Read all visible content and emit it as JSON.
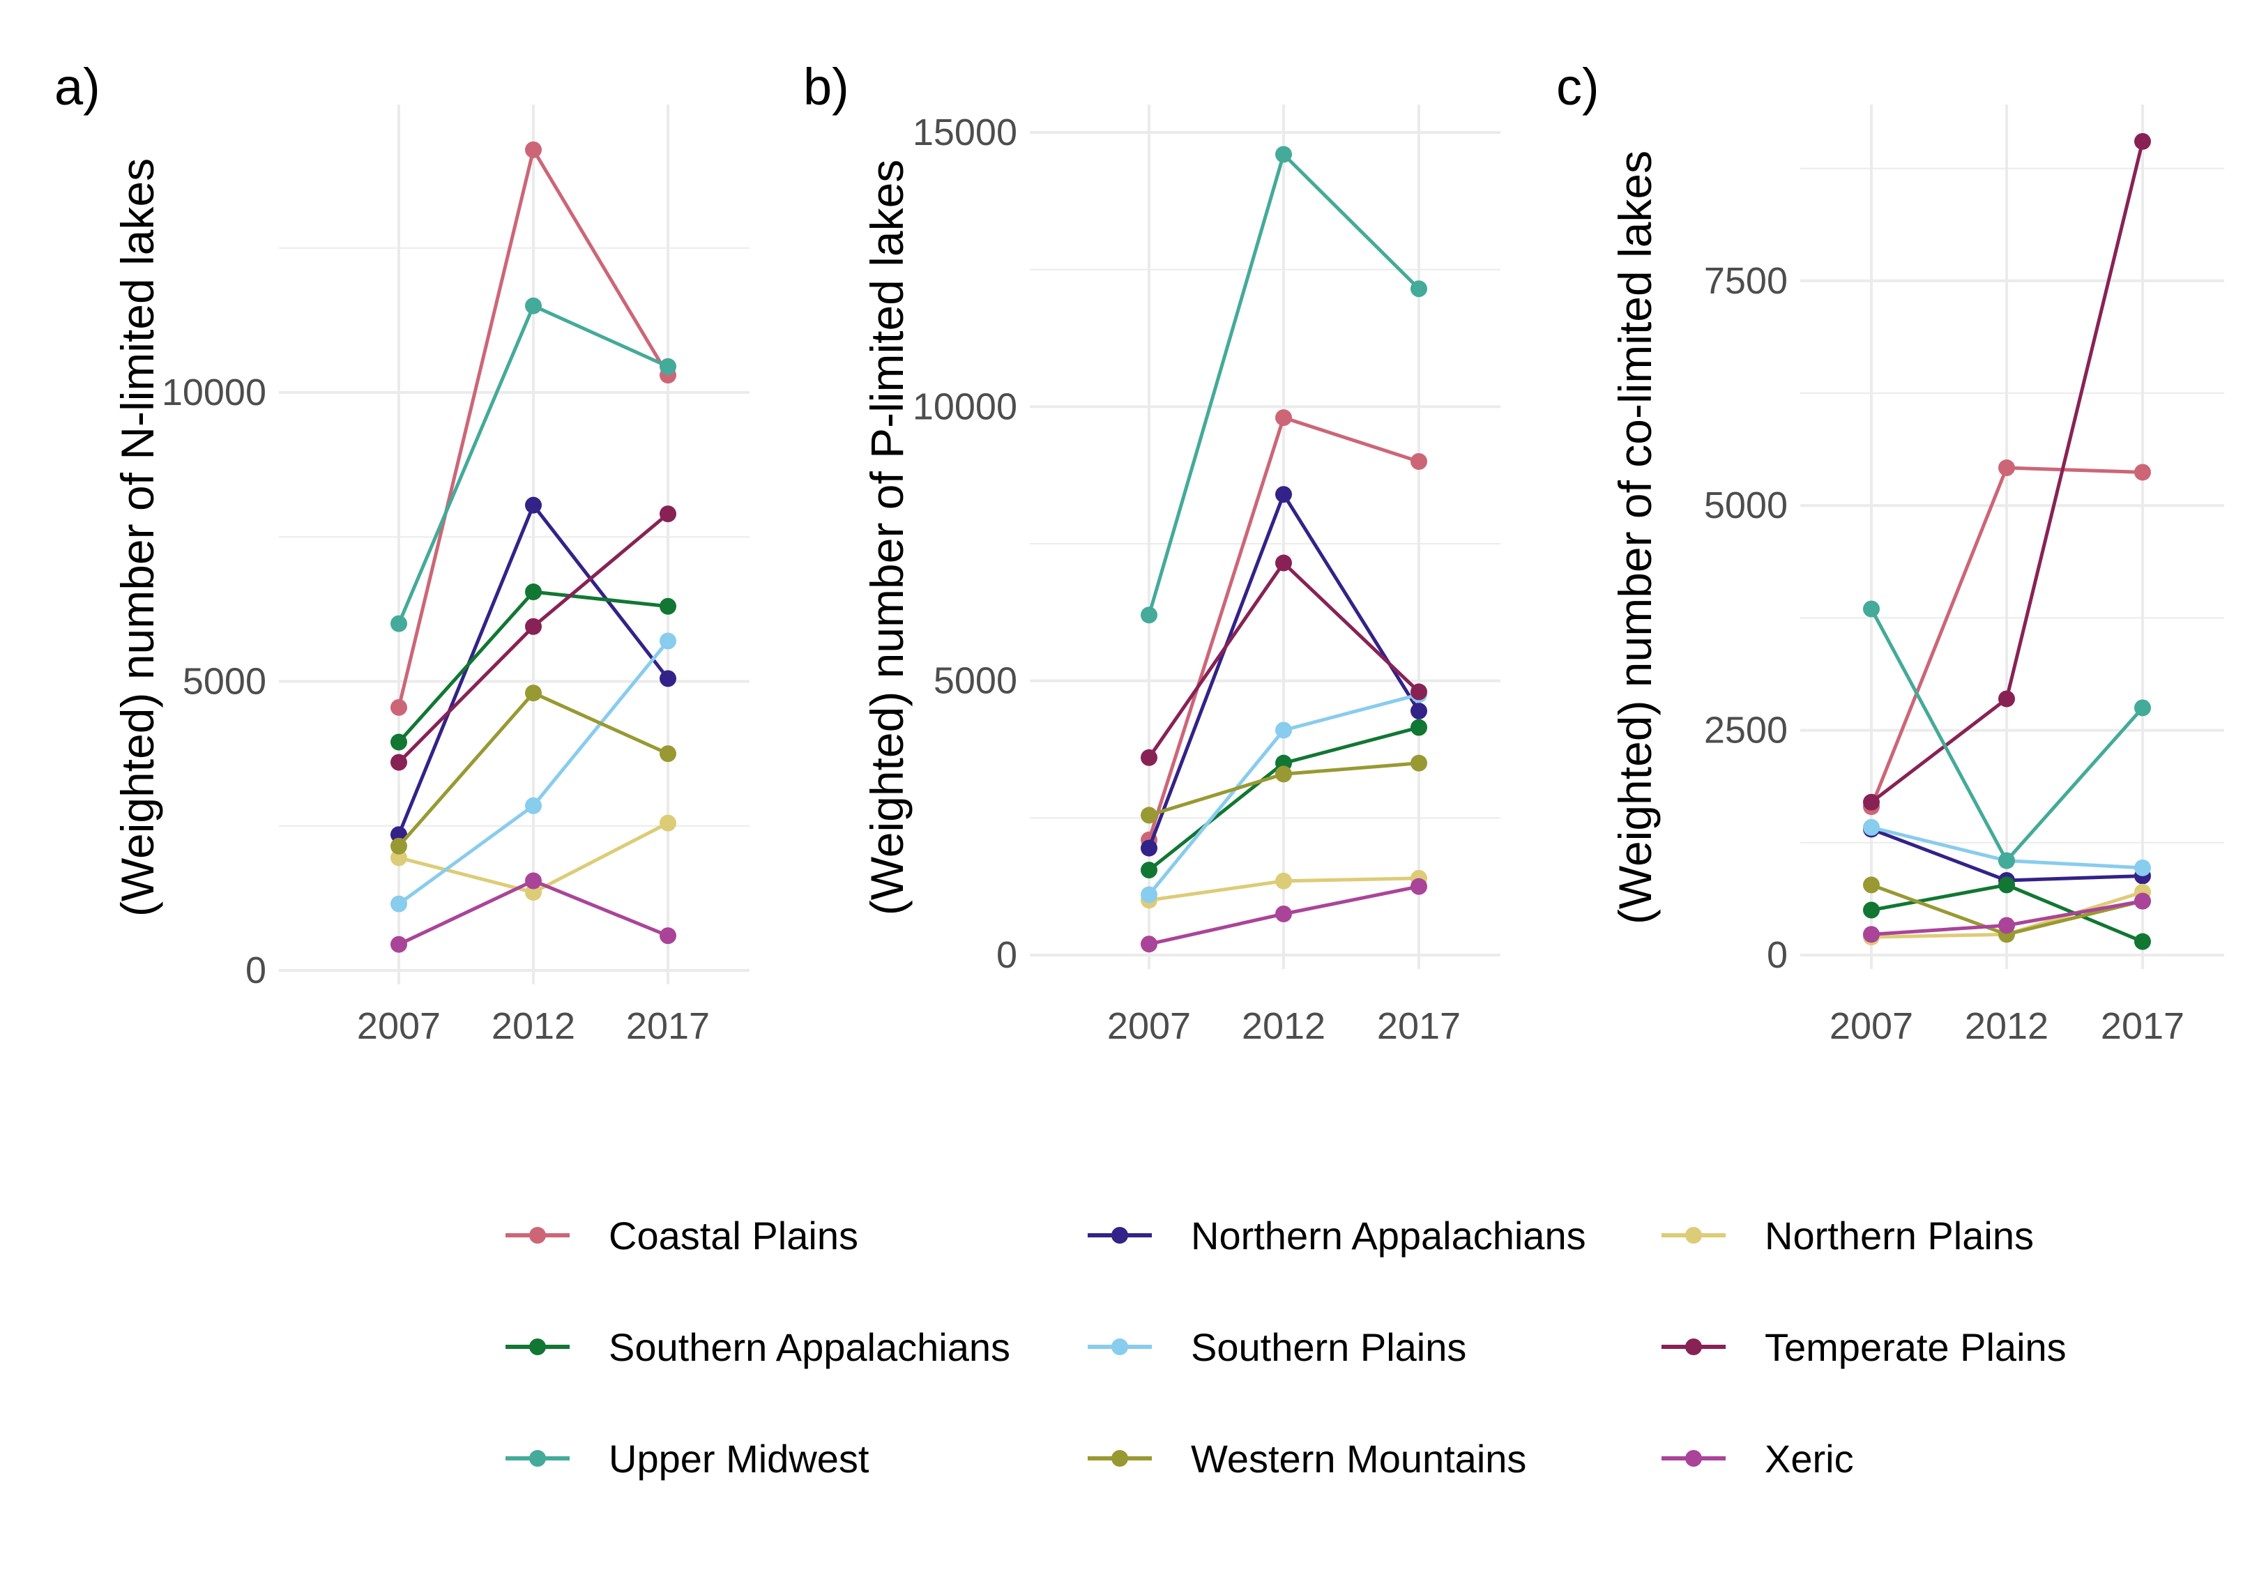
{
  "chart_data": [
    {
      "type": "line",
      "panel_label": "a)",
      "ylabel": "(Weighted) number of N-limited lakes",
      "x": [
        "2007",
        "2012",
        "2017"
      ],
      "yticks": [
        0,
        5000,
        10000
      ],
      "ylim": [
        0,
        14500
      ],
      "grid": true,
      "series": [
        {
          "name": "Coastal Plains",
          "values": [
            4550,
            14200,
            10300
          ]
        },
        {
          "name": "Northern Appalachians",
          "values": [
            2350,
            8050,
            5050
          ]
        },
        {
          "name": "Northern Plains",
          "values": [
            1950,
            1350,
            2550
          ]
        },
        {
          "name": "Southern Appalachians",
          "values": [
            3950,
            6550,
            6300
          ]
        },
        {
          "name": "Southern Plains",
          "values": [
            1150,
            2850,
            5700
          ]
        },
        {
          "name": "Temperate Plains",
          "values": [
            3600,
            5950,
            7900
          ]
        },
        {
          "name": "Upper Midwest",
          "values": [
            6000,
            11500,
            10450
          ]
        },
        {
          "name": "Western Mountains",
          "values": [
            2150,
            4800,
            3750
          ]
        },
        {
          "name": "Xeric",
          "values": [
            450,
            1550,
            600
          ]
        }
      ]
    },
    {
      "type": "line",
      "panel_label": "b)",
      "ylabel": "(Weighted) number of P-limited lakes",
      "x": [
        "2007",
        "2012",
        "2017"
      ],
      "yticks": [
        0,
        5000,
        10000,
        15000
      ],
      "ylim": [
        0,
        15000
      ],
      "grid": true,
      "series": [
        {
          "name": "Coastal Plains",
          "values": [
            2100,
            9800,
            9000
          ]
        },
        {
          "name": "Northern Appalachians",
          "values": [
            1950,
            8400,
            4450
          ]
        },
        {
          "name": "Northern Plains",
          "values": [
            1000,
            1350,
            1400
          ]
        },
        {
          "name": "Southern Appalachians",
          "values": [
            1550,
            3500,
            4150
          ]
        },
        {
          "name": "Southern Plains",
          "values": [
            1100,
            4100,
            4750
          ]
        },
        {
          "name": "Temperate Plains",
          "values": [
            3600,
            7150,
            4800
          ]
        },
        {
          "name": "Upper Midwest",
          "values": [
            6200,
            14600,
            12150
          ]
        },
        {
          "name": "Western Mountains",
          "values": [
            2550,
            3300,
            3500
          ]
        },
        {
          "name": "Xeric",
          "values": [
            200,
            750,
            1250
          ]
        }
      ]
    },
    {
      "type": "line",
      "panel_label": "c)",
      "ylabel": "(Weighted) number of co-limited lakes",
      "x": [
        "2007",
        "2012",
        "2017"
      ],
      "yticks": [
        0,
        2500,
        5000,
        7500
      ],
      "ylim": [
        0,
        9150
      ],
      "grid": true,
      "series": [
        {
          "name": "Coastal Plains",
          "values": [
            1650,
            5420,
            5370
          ]
        },
        {
          "name": "Northern Appalachians",
          "values": [
            1400,
            830,
            880
          ]
        },
        {
          "name": "Northern Plains",
          "values": [
            200,
            230,
            700
          ]
        },
        {
          "name": "Southern Appalachians",
          "values": [
            500,
            780,
            150
          ]
        },
        {
          "name": "Southern Plains",
          "values": [
            1420,
            1050,
            970
          ]
        },
        {
          "name": "Temperate Plains",
          "values": [
            1700,
            2850,
            9050
          ]
        },
        {
          "name": "Upper Midwest",
          "values": [
            3850,
            1050,
            2750
          ]
        },
        {
          "name": "Western Mountains",
          "values": [
            780,
            230,
            600
          ]
        },
        {
          "name": "Xeric",
          "values": [
            230,
            330,
            600
          ]
        }
      ]
    }
  ],
  "legend": {
    "placement": "bottom",
    "items": [
      {
        "name": "Coastal Plains",
        "color": "#cc6677"
      },
      {
        "name": "Northern Appalachians",
        "color": "#332288"
      },
      {
        "name": "Northern Plains",
        "color": "#ddcc77"
      },
      {
        "name": "Southern Appalachians",
        "color": "#117733"
      },
      {
        "name": "Southern Plains",
        "color": "#88ccee"
      },
      {
        "name": "Temperate Plains",
        "color": "#882255"
      },
      {
        "name": "Upper Midwest",
        "color": "#44aa99"
      },
      {
        "name": "Western Mountains",
        "color": "#999933"
      },
      {
        "name": "Xeric",
        "color": "#aa4499"
      }
    ]
  }
}
